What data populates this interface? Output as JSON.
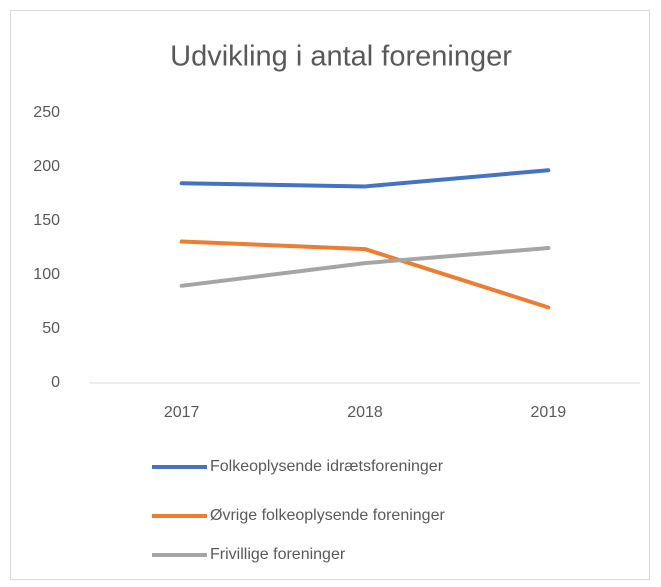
{
  "chart_data": {
    "type": "line",
    "title": "Udvikling i antal foreninger",
    "categories": [
      "2017",
      "2018",
      "2019"
    ],
    "series": [
      {
        "name": "Folkeoplysende idrætsforeninger",
        "color": "#4472c4",
        "values": [
          185,
          182,
          197
        ]
      },
      {
        "name": "Øvrige folkeoplysende foreninger",
        "color": "#ed7d31",
        "values": [
          131,
          124,
          70
        ]
      },
      {
        "name": "Frivillige foreninger",
        "color": "#a5a5a5",
        "values": [
          90,
          111,
          125
        ]
      }
    ],
    "ylim": [
      0,
      250
    ],
    "yticks": [
      0,
      50,
      100,
      150,
      200,
      250
    ],
    "grid": false,
    "legend": "bottom"
  }
}
